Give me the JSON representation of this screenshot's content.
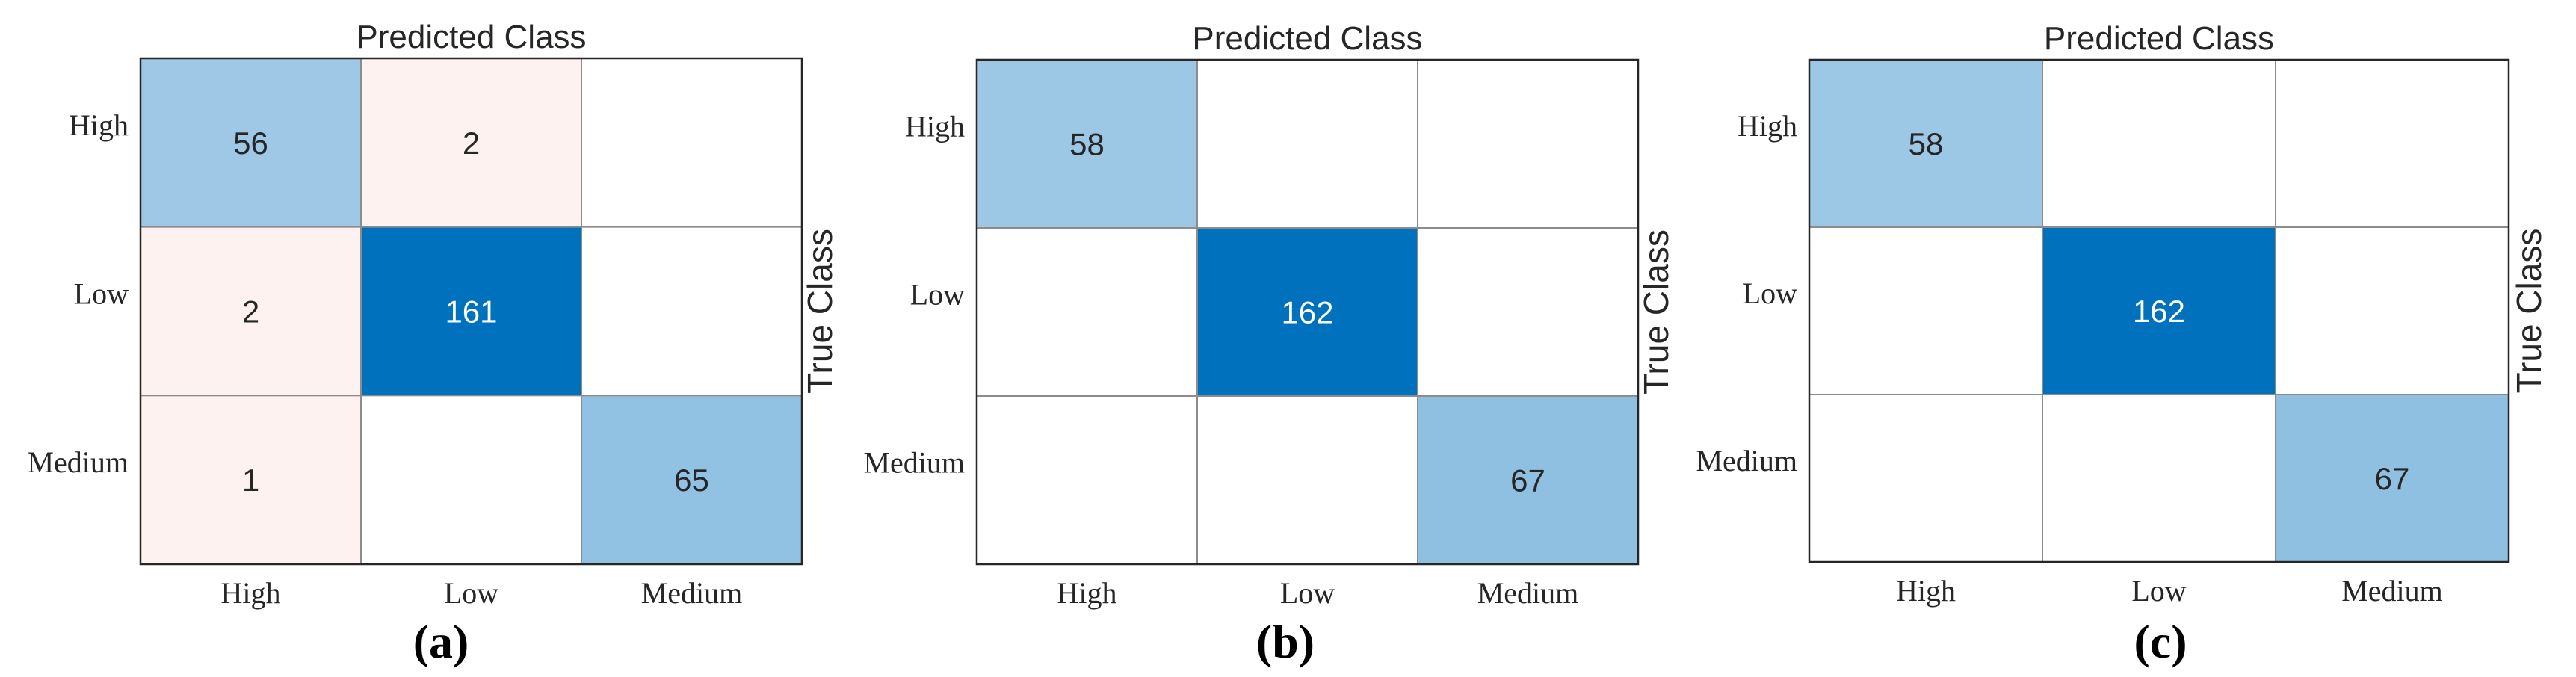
{
  "colors": {
    "diag_max": "#0072BD",
    "diag_light": "#9EC8E6",
    "offdiag": "#FDF2EF",
    "empty": "#FFFFFF",
    "grid": "#8C8C8C",
    "border": "#262626",
    "text_dark": "#262626",
    "text_light": "#FFFFFF"
  },
  "chart_data": [
    {
      "type": "heatmap",
      "panel_label": "(a)",
      "xlabel": "Predicted Class",
      "ylabel": "True Class",
      "x_categories": [
        "High",
        "Low",
        "Medium"
      ],
      "y_categories": [
        "High",
        "Low",
        "Medium"
      ],
      "matrix": [
        [
          56,
          2,
          0
        ],
        [
          2,
          161,
          0
        ],
        [
          1,
          0,
          65
        ]
      ]
    },
    {
      "type": "heatmap",
      "panel_label": "(b)",
      "xlabel": "Predicted Class",
      "ylabel": "True Class",
      "x_categories": [
        "High",
        "Low",
        "Medium"
      ],
      "y_categories": [
        "High",
        "Low",
        "Medium"
      ],
      "matrix": [
        [
          58,
          0,
          0
        ],
        [
          0,
          162,
          0
        ],
        [
          0,
          0,
          67
        ]
      ]
    },
    {
      "type": "heatmap",
      "panel_label": "(c)",
      "xlabel": "Predicted Class",
      "ylabel": "True Class",
      "x_categories": [
        "High",
        "Low",
        "Medium"
      ],
      "y_categories": [
        "High",
        "Low",
        "Medium"
      ],
      "matrix": [
        [
          58,
          0,
          0
        ],
        [
          0,
          162,
          0
        ],
        [
          0,
          0,
          67
        ]
      ]
    }
  ]
}
